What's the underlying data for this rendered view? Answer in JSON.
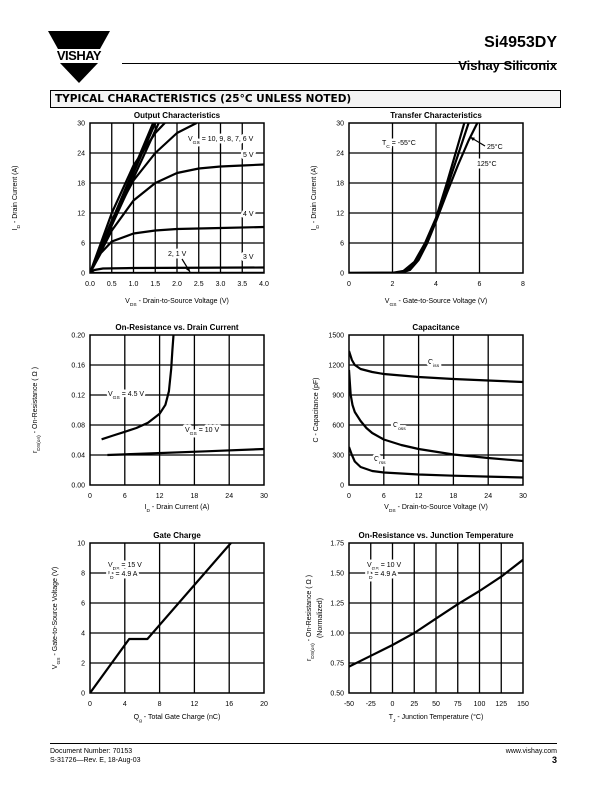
{
  "header": {
    "logo_text": "VISHAY",
    "part_number": "Si4953DY",
    "company": "Vishay Siliconix",
    "section_title": "TYPICAL CHARACTERISTICS (25°C UNLESS NOTED)"
  },
  "footer": {
    "document_number": "Document Number:  70153",
    "revision": "S-31726—Rev. E, 18-Aug-03",
    "website": "www.vishay.com",
    "page_number": "3"
  },
  "chart_data": [
    {
      "type": "line",
      "title": "Output Characteristics",
      "xlabel": [
        {
          "t": "V"
        },
        {
          "t": "DS",
          "sub": true
        },
        {
          "t": "  -  Drain-to-Source Voltage (V)"
        }
      ],
      "ylabel": [
        [
          {
            "t": "I"
          },
          {
            "t": "D",
            "sub": true
          },
          {
            "t": "  -  Drain Current (A)"
          }
        ]
      ],
      "xlim": [
        0,
        4
      ],
      "ylim": [
        0,
        30
      ],
      "xticks": [
        "0.0",
        "0.5",
        "1.0",
        "1.5",
        "2.0",
        "2.5",
        "3.0",
        "3.5",
        "4.0"
      ],
      "yticks": [
        "0",
        "6",
        "12",
        "18",
        "24",
        "30"
      ],
      "grid": true,
      "series": [
        {
          "name": "VGS = 10 V",
          "points": [
            [
              0,
              0
            ],
            [
              1.45,
              30
            ]
          ]
        },
        {
          "name": "VGS = 9 V",
          "points": [
            [
              0,
              0
            ],
            [
              1.5,
              30
            ]
          ]
        },
        {
          "name": "VGS = 8 V",
          "points": [
            [
              0,
              0
            ],
            [
              1.58,
              30
            ]
          ]
        },
        {
          "name": "VGS = 7 V",
          "points": [
            [
              0,
              0
            ],
            [
              0.5,
              12
            ],
            [
              1,
              21.5
            ],
            [
              1.5,
              28
            ],
            [
              1.72,
              30
            ]
          ]
        },
        {
          "name": "VGS = 6 V",
          "points": [
            [
              0,
              0
            ],
            [
              0.5,
              10.5
            ],
            [
              1,
              18.5
            ],
            [
              1.5,
              24
            ],
            [
              2,
              28
            ],
            [
              2.45,
              30
            ]
          ]
        },
        {
          "name": "VGS = 5 V",
          "points": [
            [
              0,
              0
            ],
            [
              0.5,
              8.5
            ],
            [
              1,
              14.5
            ],
            [
              1.5,
              18
            ],
            [
              2,
              20
            ],
            [
              2.5,
              20.9
            ],
            [
              3,
              21.3
            ],
            [
              3.5,
              21.5
            ],
            [
              4,
              21.7
            ]
          ]
        },
        {
          "name": "VGS = 4 V",
          "points": [
            [
              0,
              0
            ],
            [
              0.25,
              4
            ],
            [
              0.5,
              6.3
            ],
            [
              1,
              7.9
            ],
            [
              1.5,
              8.5
            ],
            [
              2,
              8.8
            ],
            [
              3,
              9
            ],
            [
              4,
              9.2
            ]
          ]
        },
        {
          "name": "VGS = 3 V",
          "points": [
            [
              0,
              0
            ],
            [
              0.1,
              0.6
            ],
            [
              0.3,
              0.9
            ],
            [
              1,
              1
            ],
            [
              4,
              1.1
            ]
          ]
        },
        {
          "name": "VGS = 2, 1 V",
          "points": [
            [
              0,
              0
            ],
            [
              4,
              0.05
            ]
          ]
        }
      ],
      "annotations": [
        {
          "parts": [
            {
              "t": "V"
            },
            {
              "t": "GS",
              "sub": true
            },
            {
              "t": " = 10, 9, 8, 7, 6 V"
            }
          ]
        },
        {
          "parts": [
            {
              "t": "5 V"
            }
          ]
        },
        {
          "parts": [
            {
              "t": "4 V"
            }
          ]
        },
        {
          "parts": [
            {
              "t": "3 V"
            }
          ]
        },
        {
          "parts": [
            {
              "t": "2, 1 V"
            }
          ]
        }
      ]
    },
    {
      "type": "line",
      "title": "Transfer Characteristics",
      "xlabel": [
        {
          "t": "V"
        },
        {
          "t": "GS",
          "sub": true
        },
        {
          "t": "  -  Gate-to-Source Voltage (V)"
        }
      ],
      "ylabel": [
        [
          {
            "t": "I"
          },
          {
            "t": "D",
            "sub": true
          },
          {
            "t": "  -  Drain Current (A)"
          }
        ]
      ],
      "xlim": [
        0,
        8
      ],
      "ylim": [
        0,
        30
      ],
      "xticks": [
        "0",
        "2",
        "4",
        "6",
        "8"
      ],
      "yticks": [
        "0",
        "6",
        "12",
        "18",
        "24",
        "30"
      ],
      "grid": true,
      "series": [
        {
          "name": "TC = -55°C",
          "points": [
            [
              0,
              0
            ],
            [
              2,
              0.05
            ],
            [
              2.5,
              0.4
            ],
            [
              3,
              2.2
            ],
            [
              3.5,
              6
            ],
            [
              4,
              11
            ],
            [
              4.5,
              18
            ],
            [
              5,
              25.5
            ],
            [
              5.3,
              30
            ]
          ]
        },
        {
          "name": "TC = 25°C",
          "points": [
            [
              0,
              0
            ],
            [
              2.2,
              0.05
            ],
            [
              2.7,
              0.6
            ],
            [
              3,
              1.7
            ],
            [
              3.5,
              5.6
            ],
            [
              4,
              10.6
            ],
            [
              4.5,
              17
            ],
            [
              5,
              23.5
            ],
            [
              5.5,
              30
            ]
          ]
        },
        {
          "name": "TC = 125°C",
          "points": [
            [
              0,
              0
            ],
            [
              2.4,
              0.05
            ],
            [
              2.8,
              0.6
            ],
            [
              3.2,
              2.6
            ],
            [
              3.6,
              6
            ],
            [
              4,
              10.3
            ],
            [
              4.5,
              16
            ],
            [
              5,
              21.5
            ],
            [
              5.5,
              26.5
            ],
            [
              5.9,
              30
            ]
          ]
        }
      ],
      "annotations": [
        {
          "parts": [
            {
              "t": "T"
            },
            {
              "t": "C",
              "sub": true
            },
            {
              "t": " = -55°C"
            }
          ]
        },
        {
          "parts": [
            {
              "t": "25°C"
            }
          ]
        },
        {
          "parts": [
            {
              "t": "125°C"
            }
          ]
        }
      ]
    },
    {
      "type": "line",
      "title": "On-Resistance vs. Drain Current",
      "xlabel": [
        {
          "t": "I"
        },
        {
          "t": "D",
          "sub": true
        },
        {
          "t": "  -  Drain Current (A)"
        }
      ],
      "ylabel": [
        [
          {
            "t": "r"
          },
          {
            "t": "DS(on)",
            "sub": true
          },
          {
            "t": "  -  On-Resistance ( Ω )"
          }
        ]
      ],
      "xlim": [
        0,
        30
      ],
      "ylim": [
        0,
        0.2
      ],
      "xticks": [
        "0",
        "6",
        "12",
        "18",
        "24",
        "30"
      ],
      "yticks": [
        "0.00",
        "0.04",
        "0.08",
        "0.12",
        "0.16",
        "0.20"
      ],
      "grid": true,
      "series": [
        {
          "name": "VGS = 4.5 V",
          "points": [
            [
              2,
              0.061
            ],
            [
              4,
              0.066
            ],
            [
              6,
              0.071
            ],
            [
              8,
              0.076
            ],
            [
              10,
              0.083
            ],
            [
              12,
              0.095
            ],
            [
              13,
              0.107
            ],
            [
              13.6,
              0.125
            ],
            [
              14,
              0.155
            ],
            [
              14.2,
              0.18
            ],
            [
              14.4,
              0.2
            ]
          ]
        },
        {
          "name": "VGS = 10 V",
          "points": [
            [
              3,
              0.04
            ],
            [
              10,
              0.042
            ],
            [
              20,
              0.045
            ],
            [
              30,
              0.048
            ]
          ]
        }
      ],
      "annotations": [
        {
          "parts": [
            {
              "t": "V"
            },
            {
              "t": "GS",
              "sub": true
            },
            {
              "t": " = 4.5 V"
            }
          ]
        },
        {
          "parts": [
            {
              "t": "V"
            },
            {
              "t": "GS",
              "sub": true
            },
            {
              "t": " = 10 V"
            }
          ]
        }
      ]
    },
    {
      "type": "line",
      "title": "Capacitance",
      "xlabel": [
        {
          "t": "V"
        },
        {
          "t": "DS",
          "sub": true
        },
        {
          "t": "  -  Drain-to-Source Voltage (V)"
        }
      ],
      "ylabel": [
        [
          {
            "t": "C  -  Capacitance (pF)"
          }
        ]
      ],
      "xlim": [
        0,
        30
      ],
      "ylim": [
        0,
        1500
      ],
      "xticks": [
        "0",
        "6",
        "12",
        "18",
        "24",
        "30"
      ],
      "yticks": [
        "0",
        "300",
        "600",
        "900",
        "1200",
        "1500"
      ],
      "grid": true,
      "series": [
        {
          "name": "Ciss",
          "points": [
            [
              0,
              1340
            ],
            [
              0.5,
              1250
            ],
            [
              1,
              1200
            ],
            [
              2,
              1160
            ],
            [
              4,
              1130
            ],
            [
              6,
              1110
            ],
            [
              12,
              1080
            ],
            [
              18,
              1060
            ],
            [
              24,
              1045
            ],
            [
              30,
              1030
            ]
          ]
        },
        {
          "name": "Coss",
          "points": [
            [
              0,
              1150
            ],
            [
              0.3,
              900
            ],
            [
              0.6,
              800
            ],
            [
              1,
              730
            ],
            [
              2,
              640
            ],
            [
              3,
              570
            ],
            [
              4,
              520
            ],
            [
              6,
              455
            ],
            [
              9,
              400
            ],
            [
              12,
              360
            ],
            [
              18,
              305
            ],
            [
              24,
              270
            ],
            [
              30,
              240
            ]
          ]
        },
        {
          "name": "Crss",
          "points": [
            [
              0,
              380
            ],
            [
              0.5,
              300
            ],
            [
              1,
              235
            ],
            [
              2,
              180
            ],
            [
              4,
              140
            ],
            [
              6,
              125
            ],
            [
              12,
              105
            ],
            [
              18,
              93
            ],
            [
              24,
              84
            ],
            [
              30,
              75
            ]
          ]
        }
      ],
      "annotations": [
        {
          "parts": [
            {
              "t": "C"
            },
            {
              "t": "iss",
              "sub": true
            }
          ]
        },
        {
          "parts": [
            {
              "t": "C"
            },
            {
              "t": "oss",
              "sub": true
            }
          ]
        },
        {
          "parts": [
            {
              "t": "C"
            },
            {
              "t": "rss",
              "sub": true
            }
          ]
        }
      ]
    },
    {
      "type": "line",
      "title": "Gate Charge",
      "xlabel": [
        {
          "t": "Q"
        },
        {
          "t": "g",
          "sub": true
        },
        {
          "t": "  -  Total Gate Charge (nC)"
        }
      ],
      "ylabel": [
        [
          {
            "t": "V"
          },
          {
            "t": "GS",
            "sub": true
          },
          {
            "t": "  -  Gate-to-Source Voltage (V)"
          }
        ]
      ],
      "xlim": [
        0,
        20
      ],
      "ylim": [
        0,
        10
      ],
      "xticks": [
        "0",
        "4",
        "8",
        "12",
        "16",
        "20"
      ],
      "yticks": [
        "0",
        "2",
        "4",
        "6",
        "8",
        "10"
      ],
      "grid": true,
      "series": [
        {
          "name": "VGS",
          "points": [
            [
              0,
              0
            ],
            [
              4.5,
              3.6
            ],
            [
              6.6,
              3.6
            ],
            [
              16.2,
              10
            ]
          ]
        }
      ],
      "annotations": [
        {
          "parts": [
            {
              "t": "V"
            },
            {
              "t": "DS",
              "sub": true
            },
            {
              "t": " = 15  V"
            }
          ]
        },
        {
          "parts": [
            {
              "t": "I"
            },
            {
              "t": "D",
              "sub": true
            },
            {
              "t": " = 4.9 A"
            }
          ]
        }
      ]
    },
    {
      "type": "line",
      "title": "On-Resistance vs. Junction Temperature",
      "xlabel": [
        {
          "t": "T"
        },
        {
          "t": "J",
          "sub": true
        },
        {
          "t": " - Junction Temperature (°C)"
        }
      ],
      "ylabel": [
        [
          {
            "t": "r"
          },
          {
            "t": "DS(on)",
            "sub": true
          },
          {
            "t": "  -  On-Resistance ( Ω )"
          }
        ],
        [
          {
            "t": "(Normalized)"
          }
        ]
      ],
      "xlim": [
        -50,
        150
      ],
      "ylim": [
        0.5,
        1.75
      ],
      "xticks": [
        "-50",
        "-25",
        "0",
        "25",
        "50",
        "75",
        "100",
        "125",
        "150"
      ],
      "yticks": [
        "0.50",
        "0.75",
        "1.00",
        "1.25",
        "1.50",
        "1.75"
      ],
      "grid": true,
      "series": [
        {
          "name": "rDS(on)",
          "points": [
            [
              -50,
              0.72
            ],
            [
              -25,
              0.81
            ],
            [
              0,
              0.9
            ],
            [
              25,
              1.0
            ],
            [
              50,
              1.12
            ],
            [
              75,
              1.24
            ],
            [
              100,
              1.35
            ],
            [
              125,
              1.47
            ],
            [
              150,
              1.61
            ]
          ]
        }
      ],
      "annotations": [
        {
          "parts": [
            {
              "t": "V"
            },
            {
              "t": "GS",
              "sub": true
            },
            {
              "t": " = 10 V"
            }
          ]
        },
        {
          "parts": [
            {
              "t": "I"
            },
            {
              "t": "D",
              "sub": true
            },
            {
              "t": " = 4.9 A"
            }
          ]
        }
      ]
    }
  ]
}
